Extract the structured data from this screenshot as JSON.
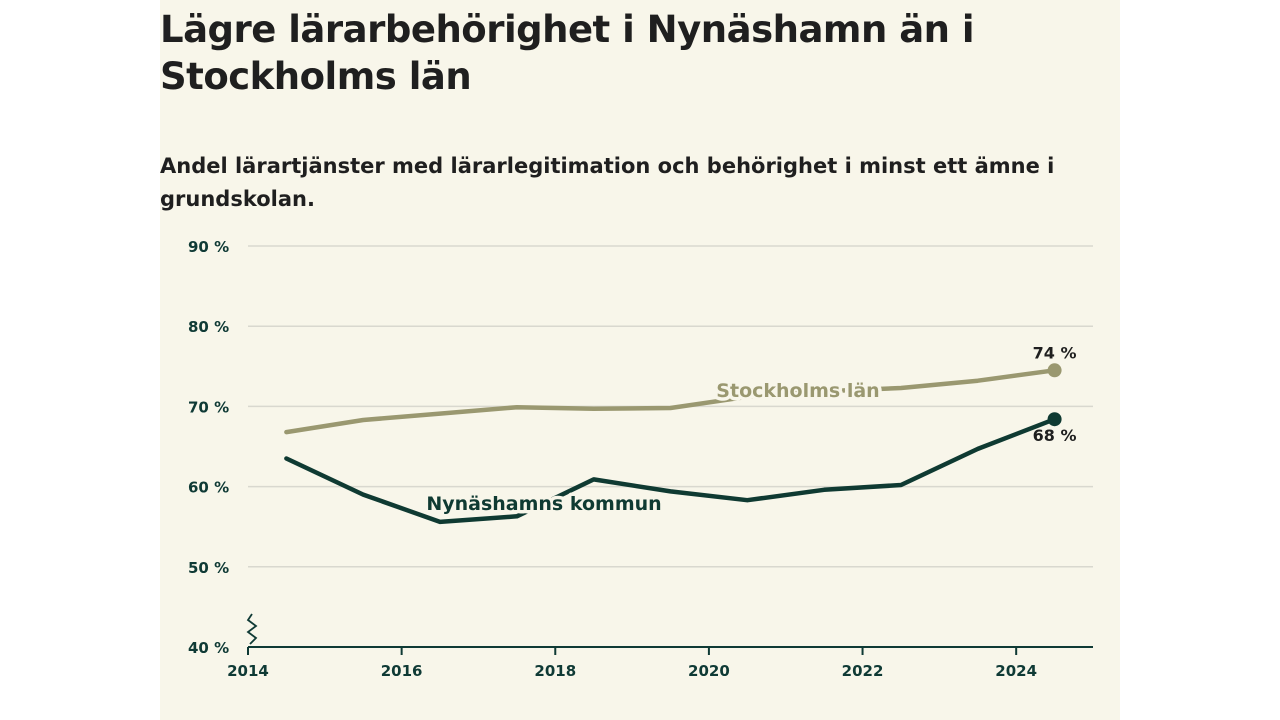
{
  "title": "Lägre lärarbehörighet i Nynäshamn än i Stockholms län",
  "subtitle": "Andel lärartjänster med lärarlegitimation och behörighet i minst ett ämne i grundskolan.",
  "colors": {
    "background": "#f8f6ea",
    "stockholm": "#9a9870",
    "nynashamn": "#0f3a32",
    "grid": "#d9d8cf",
    "axis": "#0f3a35"
  },
  "chart_data": {
    "type": "line",
    "x": [
      2014.5,
      2015.5,
      2016.5,
      2017.5,
      2018.5,
      2019.5,
      2020.5,
      2021.5,
      2022.5,
      2023.5,
      2024.5
    ],
    "series": [
      {
        "name": "Stockholms län",
        "values": [
          66.8,
          68.3,
          69.1,
          69.9,
          69.7,
          69.8,
          71.2,
          71.9,
          72.3,
          73.2,
          74.5
        ],
        "end_label": "74 %"
      },
      {
        "name": "Nynäshamns kommun",
        "values": [
          63.5,
          59.0,
          55.6,
          56.3,
          60.9,
          59.4,
          58.3,
          59.6,
          60.2,
          64.7,
          68.4
        ],
        "end_label": "68 %"
      }
    ],
    "xlim": [
      2014,
      2025
    ],
    "ylim": [
      40,
      90
    ],
    "x_ticks": [
      "2014",
      "2016",
      "2018",
      "2020",
      "2022",
      "2024"
    ],
    "y_ticks": [
      "40 %",
      "50 %",
      "60 %",
      "70 %",
      "80 %",
      "90 %"
    ],
    "grid": true,
    "axis_break": true
  }
}
